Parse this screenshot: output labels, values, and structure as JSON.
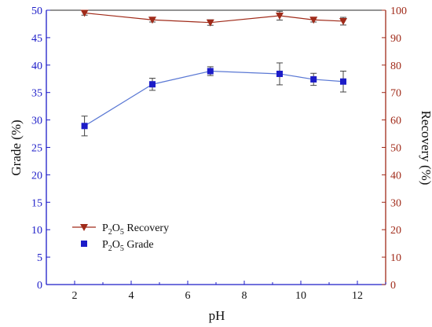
{
  "chart_data": {
    "type": "line",
    "xlabel": "pH",
    "ylabel_left": "Grade (%)",
    "ylabel_right": "Recovery (%)",
    "xlim": [
      1,
      13
    ],
    "ylim_left": [
      0,
      50
    ],
    "ylim_right": [
      0,
      100
    ],
    "x_ticks": [
      2,
      4,
      6,
      8,
      10,
      12
    ],
    "y_ticks_left": [
      0,
      5,
      10,
      15,
      20,
      25,
      30,
      35,
      40,
      45,
      50
    ],
    "y_ticks_right": [
      0,
      10,
      20,
      30,
      40,
      50,
      60,
      70,
      80,
      90,
      100
    ],
    "grid": false,
    "legend_position": "lower-left",
    "series": [
      {
        "name": "Recovery",
        "legend_label": {
          "base": "P",
          "sub1": "2",
          "mid": "O",
          "sub2": "5",
          "rest": " Recovery"
        },
        "axis": "right",
        "marker": "triangle-down",
        "color": "#a02b1a",
        "x": [
          2.35,
          4.75,
          6.8,
          9.25,
          10.45,
          11.5
        ],
        "y": [
          99.0,
          96.5,
          95.5,
          98.0,
          96.5,
          96.0
        ],
        "err": [
          0.8,
          0.8,
          1.0,
          1.6,
          0.8,
          1.4
        ]
      },
      {
        "name": "Grade",
        "legend_label": {
          "base": "P",
          "sub1": "2",
          "mid": "O",
          "sub2": "5",
          "rest": " Grade"
        },
        "axis": "left",
        "marker": "square",
        "color": "#1c1cc8",
        "line_color": "#5a78d4",
        "x": [
          2.35,
          4.75,
          6.8,
          9.25,
          10.45,
          11.5
        ],
        "y": [
          28.9,
          36.5,
          38.9,
          38.4,
          37.4,
          37.0
        ],
        "err": [
          1.8,
          1.1,
          0.8,
          2.0,
          1.1,
          1.9
        ]
      }
    ]
  }
}
